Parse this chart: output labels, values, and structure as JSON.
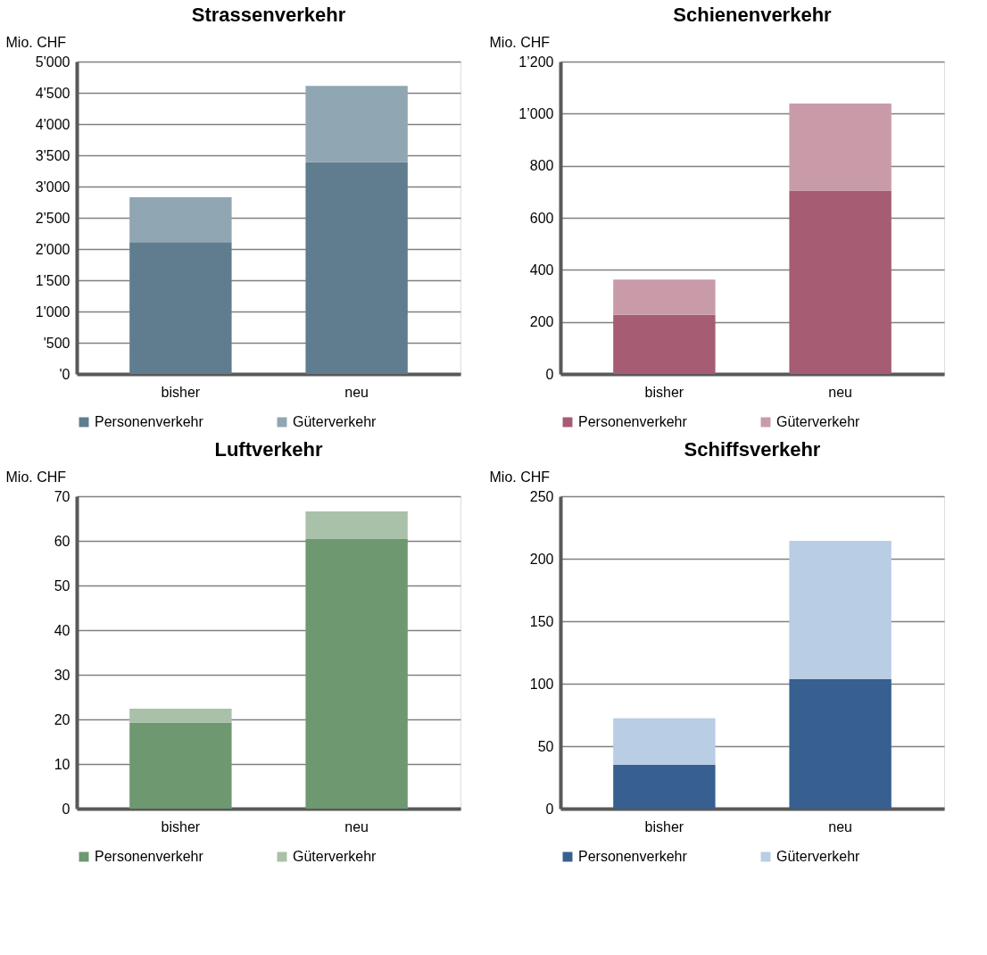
{
  "chart_data": [
    {
      "type": "bar",
      "title": "Strassenverkehr",
      "ylabel": "Mio. CHF",
      "categories": [
        "bisher",
        "neu"
      ],
      "stacked": true,
      "legend": "bottom",
      "grid": "y",
      "series": [
        {
          "name": "Personenverkehr",
          "color": "#5f7d8f",
          "values": [
            2110,
            3390
          ]
        },
        {
          "name": "Güterverkehr",
          "color": "#90a6b2",
          "values": [
            720,
            1220
          ]
        }
      ],
      "ylim": [
        0,
        5000
      ],
      "yticks": [
        {
          "value": 0,
          "label": "'0"
        },
        {
          "value": 500,
          "label": "'500"
        },
        {
          "value": 1000,
          "label": "1'000"
        },
        {
          "value": 1500,
          "label": "1'500"
        },
        {
          "value": 2000,
          "label": "2'000"
        },
        {
          "value": 2500,
          "label": "2'500"
        },
        {
          "value": 3000,
          "label": "3'000"
        },
        {
          "value": 3500,
          "label": "3'500"
        },
        {
          "value": 4000,
          "label": "4'000"
        },
        {
          "value": 4500,
          "label": "4'500"
        },
        {
          "value": 5000,
          "label": "5'000"
        }
      ]
    },
    {
      "type": "bar",
      "title": "Schienenverkehr",
      "ylabel": "Mio. CHF",
      "categories": [
        "bisher",
        "neu"
      ],
      "stacked": true,
      "legend": "bottom",
      "grid": "y",
      "series": [
        {
          "name": "Personenverkehr",
          "color": "#a65c72",
          "values": [
            227,
            705
          ]
        },
        {
          "name": "Güterverkehr",
          "color": "#c99ba9",
          "values": [
            136,
            334
          ]
        }
      ],
      "ylim": [
        0,
        1200
      ],
      "yticks": [
        0,
        200,
        400,
        600,
        800,
        {
          "value": 1000,
          "label": "1’000"
        },
        {
          "value": 1200,
          "label": "1’200"
        }
      ]
    },
    {
      "type": "bar",
      "title": "Luftverkehr",
      "ylabel": "Mio. CHF",
      "categories": [
        "bisher",
        "neu"
      ],
      "stacked": true,
      "legend": "bottom",
      "grid": "y",
      "series": [
        {
          "name": "Personenverkehr",
          "color": "#6e9870",
          "values": [
            19.3,
            60.4
          ]
        },
        {
          "name": "Güterverkehr",
          "color": "#a9c1a8",
          "values": [
            3.1,
            6.2
          ]
        }
      ],
      "ylim": [
        0,
        70
      ],
      "yticks": [
        0,
        10,
        20,
        30,
        40,
        50,
        60,
        70
      ]
    },
    {
      "type": "bar",
      "title": "Schiffsverkehr",
      "ylabel": "Mio. CHF",
      "categories": [
        "bisher",
        "neu"
      ],
      "stacked": true,
      "legend": "bottom",
      "grid": "y",
      "series": [
        {
          "name": "Personenverkehr",
          "color": "#376091",
          "values": [
            35,
            103.5
          ]
        },
        {
          "name": "Güterverkehr",
          "color": "#b9cde4",
          "values": [
            37.4,
            110.8
          ]
        }
      ],
      "ylim": [
        0,
        250
      ],
      "yticks": [
        0,
        50,
        100,
        150,
        200,
        250
      ]
    }
  ]
}
